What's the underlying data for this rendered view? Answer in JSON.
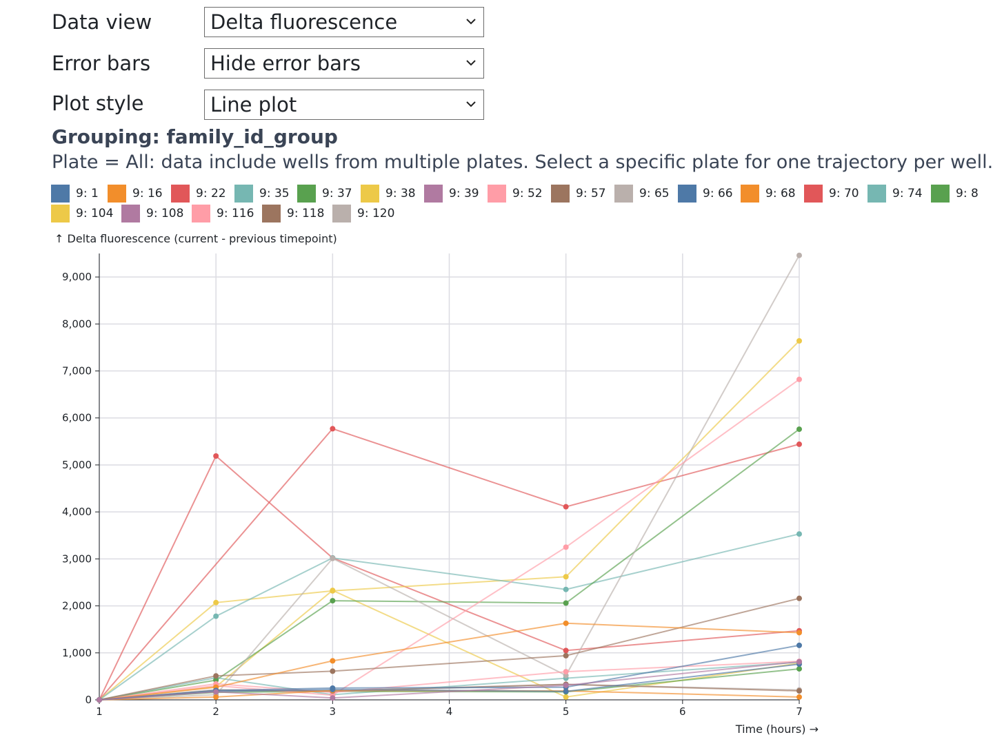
{
  "controls": {
    "data_view": {
      "label": "Data view",
      "value": "Delta fluorescence"
    },
    "error_bars": {
      "label": "Error bars",
      "value": "Hide error bars"
    },
    "plot_style": {
      "label": "Plot style",
      "value": "Line plot"
    }
  },
  "icons": {
    "select_caret": "chevron-down-icon"
  },
  "grouping_text": "Grouping: family_id_group",
  "plate_note": "Plate = All: data include wells from multiple plates. Select a specific plate for one trajectory per well.",
  "legend": [
    {
      "label": "9: 1",
      "color": "#4e79a7"
    },
    {
      "label": "9: 16",
      "color": "#f28e2b"
    },
    {
      "label": "9: 22",
      "color": "#e15759"
    },
    {
      "label": "9: 35",
      "color": "#76b7b2"
    },
    {
      "label": "9: 37",
      "color": "#59a14f"
    },
    {
      "label": "9: 38",
      "color": "#edc948"
    },
    {
      "label": "9: 39",
      "color": "#b07aa1"
    },
    {
      "label": "9: 52",
      "color": "#ff9da7"
    },
    {
      "label": "9: 57",
      "color": "#9c755f"
    },
    {
      "label": "9: 65",
      "color": "#bab0ac"
    },
    {
      "label": "9: 66",
      "color": "#4e79a7"
    },
    {
      "label": "9: 68",
      "color": "#f28e2b"
    },
    {
      "label": "9: 70",
      "color": "#e15759"
    },
    {
      "label": "9: 74",
      "color": "#76b7b2"
    },
    {
      "label": "9: 8",
      "color": "#59a14f"
    },
    {
      "label": "9: 104",
      "color": "#edc948"
    },
    {
      "label": "9: 108",
      "color": "#b07aa1"
    },
    {
      "label": "9: 116",
      "color": "#ff9da7"
    },
    {
      "label": "9: 118",
      "color": "#9c755f"
    },
    {
      "label": "9: 120",
      "color": "#bab0ac"
    }
  ],
  "chart_data": {
    "type": "line",
    "ylabel": "↑ Delta fluorescence (current - previous timepoint)",
    "xlabel": "Time (hours) →",
    "xlim": [
      1,
      7
    ],
    "ylim": [
      0,
      9500
    ],
    "x_ticks": [
      1,
      2,
      3,
      4,
      5,
      6,
      7
    ],
    "y_ticks": [
      0,
      1000,
      2000,
      3000,
      4000,
      5000,
      6000,
      7000,
      8000,
      9000
    ],
    "x_tick_labels": [
      "1",
      "2",
      "3",
      "4",
      "5",
      "6",
      "7"
    ],
    "y_tick_labels": [
      "0",
      "1,000",
      "2,000",
      "3,000",
      "4,000",
      "5,000",
      "6,000",
      "7,000",
      "8,000",
      "9,000"
    ],
    "grid": true,
    "series": [
      {
        "color": "#e15759",
        "points": [
          [
            1,
            0
          ],
          [
            2,
            5190
          ],
          [
            3,
            3020
          ],
          [
            5,
            1050
          ],
          [
            7,
            1470
          ]
        ]
      },
      {
        "color": "#e15759",
        "points": [
          [
            1,
            0
          ],
          [
            3,
            5770
          ],
          [
            5,
            4110
          ],
          [
            7,
            5440
          ]
        ]
      },
      {
        "color": "#edc948",
        "points": [
          [
            1,
            0
          ],
          [
            2,
            2070
          ],
          [
            3,
            2320
          ],
          [
            5,
            2620
          ],
          [
            7,
            7640
          ]
        ]
      },
      {
        "color": "#edc948",
        "points": [
          [
            1,
            0
          ],
          [
            2,
            280
          ],
          [
            3,
            2330
          ],
          [
            5,
            60
          ],
          [
            7,
            780
          ]
        ]
      },
      {
        "color": "#76b7b2",
        "points": [
          [
            1,
            0
          ],
          [
            2,
            1780
          ],
          [
            3,
            3020
          ],
          [
            5,
            2350
          ],
          [
            7,
            3530
          ]
        ]
      },
      {
        "color": "#76b7b2",
        "points": [
          [
            1,
            0
          ],
          [
            2,
            470
          ],
          [
            3,
            110
          ],
          [
            5,
            460
          ],
          [
            7,
            800
          ]
        ]
      },
      {
        "color": "#59a14f",
        "points": [
          [
            1,
            0
          ],
          [
            2,
            420
          ],
          [
            3,
            2110
          ],
          [
            5,
            2060
          ],
          [
            7,
            5760
          ]
        ]
      },
      {
        "color": "#59a14f",
        "points": [
          [
            1,
            0
          ],
          [
            2,
            160
          ],
          [
            3,
            180
          ],
          [
            5,
            170
          ],
          [
            7,
            660
          ]
        ]
      },
      {
        "color": "#bab0ac",
        "points": [
          [
            1,
            0
          ],
          [
            2,
            110
          ],
          [
            3,
            3010
          ],
          [
            5,
            520
          ],
          [
            7,
            9460
          ]
        ]
      },
      {
        "color": "#bab0ac",
        "points": [
          [
            1,
            0
          ],
          [
            2,
            220
          ],
          [
            3,
            170
          ],
          [
            5,
            330
          ],
          [
            7,
            210
          ]
        ]
      },
      {
        "color": "#ff9da7",
        "points": [
          [
            1,
            0
          ],
          [
            2,
            300
          ],
          [
            3,
            100
          ],
          [
            5,
            3250
          ],
          [
            7,
            6820
          ]
        ]
      },
      {
        "color": "#ff9da7",
        "points": [
          [
            1,
            0
          ],
          [
            2,
            340
          ],
          [
            3,
            160
          ],
          [
            5,
            600
          ],
          [
            7,
            820
          ]
        ]
      },
      {
        "color": "#9c755f",
        "points": [
          [
            1,
            0
          ],
          [
            2,
            510
          ],
          [
            3,
            610
          ],
          [
            5,
            940
          ],
          [
            7,
            2160
          ]
        ]
      },
      {
        "color": "#9c755f",
        "points": [
          [
            1,
            0
          ],
          [
            2,
            200
          ],
          [
            3,
            190
          ],
          [
            5,
            330
          ],
          [
            7,
            190
          ]
        ]
      },
      {
        "color": "#f28e2b",
        "points": [
          [
            1,
            0
          ],
          [
            2,
            270
          ],
          [
            3,
            830
          ],
          [
            5,
            1630
          ],
          [
            7,
            1430
          ]
        ]
      },
      {
        "color": "#f28e2b",
        "points": [
          [
            1,
            0
          ],
          [
            2,
            60
          ],
          [
            3,
            200
          ],
          [
            5,
            190
          ],
          [
            7,
            60
          ]
        ]
      },
      {
        "color": "#4e79a7",
        "points": [
          [
            1,
            0
          ],
          [
            2,
            200
          ],
          [
            3,
            250
          ],
          [
            5,
            270
          ],
          [
            7,
            1160
          ]
        ]
      },
      {
        "color": "#4e79a7",
        "points": [
          [
            1,
            0
          ],
          [
            2,
            180
          ],
          [
            3,
            220
          ],
          [
            5,
            180
          ],
          [
            7,
            760
          ]
        ]
      },
      {
        "color": "#b07aa1",
        "points": [
          [
            1,
            0
          ],
          [
            2,
            170
          ],
          [
            3,
            40
          ],
          [
            5,
            310
          ],
          [
            7,
            810
          ]
        ]
      }
    ]
  }
}
